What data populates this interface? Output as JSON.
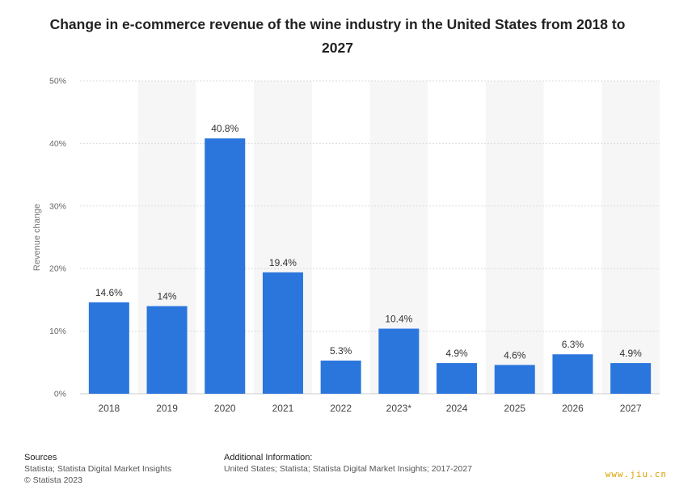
{
  "title": "Change in e-commerce revenue of the wine industry in the United States from 2018 to 2027",
  "chart_data": {
    "type": "bar",
    "categories": [
      "2018",
      "2019",
      "2020",
      "2021",
      "2022",
      "2023*",
      "2024",
      "2025",
      "2026",
      "2027"
    ],
    "values": [
      14.6,
      14,
      40.8,
      19.4,
      5.3,
      10.4,
      4.9,
      4.6,
      6.3,
      4.9
    ],
    "data_labels": [
      "14.6%",
      "14%",
      "40.8%",
      "19.4%",
      "5.3%",
      "10.4%",
      "4.9%",
      "4.6%",
      "6.3%",
      "4.9%"
    ],
    "ylabel": "Revenue change",
    "ylim": [
      0,
      50
    ],
    "yticks": [
      0,
      10,
      20,
      30,
      40,
      50
    ],
    "ytick_labels": [
      "0%",
      "10%",
      "20%",
      "30%",
      "40%",
      "50%"
    ],
    "bar_color": "#2a76dd",
    "grid": true
  },
  "footer": {
    "sources_heading": "Sources",
    "sources_line1": "Statista; Statista Digital Market Insights",
    "sources_line2": "© Statista 2023",
    "additional_heading": "Additional Information:",
    "additional_line1": "United States; Statista; Statista Digital Market Insights; 2017-2027"
  },
  "watermark": "www.jiu.cn"
}
